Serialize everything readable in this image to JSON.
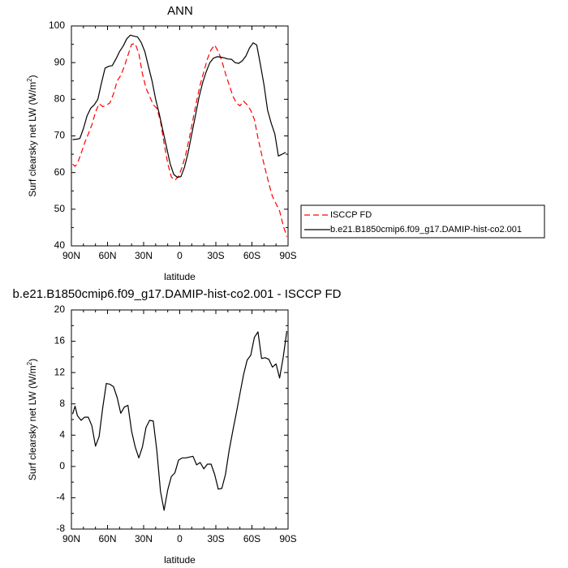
{
  "colors": {
    "obs": "#ff0000",
    "model": "#000000"
  },
  "chart_data": [
    {
      "type": "line",
      "title": "ANN",
      "xlabel": "latitude",
      "ylabel_main": "Surf clearsky net LW (W/m",
      "ylabel_sup": "2",
      "ylabel_close": ")",
      "xlim": [
        -90,
        90
      ],
      "ylim": [
        40,
        100
      ],
      "xticks": [
        -90,
        -60,
        -30,
        0,
        30,
        60,
        90
      ],
      "xtick_labels": [
        "90N",
        "60N",
        "30N",
        "0",
        "30S",
        "60S",
        "90S"
      ],
      "yticks": [
        40,
        50,
        60,
        70,
        80,
        90,
        100
      ],
      "ytick_labels": [
        "40",
        "50",
        "60",
        "70",
        "80",
        "90",
        "100"
      ],
      "legend": {
        "placement": "right"
      },
      "series": [
        {
          "name": "ISCCP FD",
          "style": "dashed",
          "color": "#ff0000",
          "x": [
            -89,
            -87,
            -85,
            -82,
            -79,
            -76,
            -73,
            -70,
            -67,
            -64,
            -61,
            -58,
            -55,
            -52,
            -49,
            -46,
            -43,
            -40,
            -37,
            -34,
            -31,
            -28,
            -25,
            -22,
            -19,
            -16,
            -13,
            -10,
            -7,
            -4,
            -1,
            2,
            5,
            8,
            11,
            14,
            17,
            20,
            23,
            26,
            29,
            32,
            35,
            38,
            41,
            44,
            47,
            50,
            53,
            56,
            59,
            62,
            65,
            68,
            71,
            74,
            77,
            80,
            83,
            86,
            89
          ],
          "y": [
            62.3,
            61.7,
            62.5,
            65.2,
            68.1,
            70.5,
            73.0,
            76.5,
            78.8,
            78.0,
            78.4,
            79.0,
            81.5,
            85.0,
            86.5,
            89.0,
            92.0,
            95.0,
            95.2,
            92.5,
            87.0,
            83.0,
            80.8,
            78.5,
            77.5,
            74.0,
            68.0,
            62.5,
            58.8,
            57.9,
            59.0,
            61.5,
            65.0,
            69.5,
            74.5,
            79.5,
            84.0,
            87.5,
            91.0,
            93.5,
            94.8,
            93.0,
            90.5,
            87.0,
            84.0,
            81.0,
            79.0,
            78.2,
            79.5,
            78.5,
            77.0,
            74.5,
            69.5,
            65.0,
            61.0,
            57.0,
            53.5,
            51.5,
            49.5,
            45.5,
            42.5
          ]
        },
        {
          "name": "b.e21.B1850cmip6.f09_g17.DAMIP-hist-co2.001",
          "style": "solid",
          "color": "#000000",
          "x": [
            -89,
            -86,
            -83,
            -80,
            -77,
            -74,
            -71,
            -68,
            -65,
            -62,
            -59,
            -56,
            -53,
            -50,
            -47,
            -44,
            -41,
            -38,
            -35,
            -32,
            -29,
            -26,
            -23,
            -20,
            -17,
            -14,
            -11,
            -8,
            -5,
            -2,
            1,
            4,
            7,
            10,
            13,
            16,
            19,
            22,
            25,
            28,
            31,
            34,
            37,
            40,
            43,
            46,
            49,
            52,
            55,
            58,
            61,
            64,
            67,
            70,
            73,
            76,
            79,
            82,
            85,
            88
          ],
          "y": [
            69.0,
            69.1,
            69.3,
            72.0,
            75.5,
            77.5,
            78.5,
            80.0,
            84.5,
            88.5,
            89.0,
            89.2,
            91.0,
            93.0,
            94.5,
            96.5,
            97.5,
            97.2,
            97.0,
            95.5,
            93.0,
            89.0,
            85.0,
            80.0,
            76.0,
            71.5,
            67.0,
            62.5,
            59.5,
            58.7,
            58.9,
            61.5,
            65.5,
            70.5,
            75.5,
            80.5,
            84.5,
            87.5,
            90.0,
            91.2,
            91.6,
            91.5,
            91.3,
            91.0,
            90.9,
            90.0,
            89.8,
            90.5,
            91.8,
            94.0,
            95.4,
            94.8,
            89.5,
            84.0,
            77.0,
            73.5,
            70.5,
            64.5,
            65.0,
            65.5
          ]
        }
      ]
    },
    {
      "type": "line",
      "title": "b.e21.B1850cmip6.f09_g17.DAMIP-hist-co2.001 - ISCCP FD",
      "xlabel": "latitude",
      "ylabel_main": "Surf clearsky net LW (W/m",
      "ylabel_sup": "2",
      "ylabel_close": ")",
      "xlim": [
        -90,
        90
      ],
      "ylim": [
        -8,
        20
      ],
      "xticks": [
        -90,
        -60,
        -30,
        0,
        30,
        60,
        90
      ],
      "xtick_labels": [
        "90N",
        "60N",
        "30N",
        "0",
        "30S",
        "60S",
        "90S"
      ],
      "yticks": [
        -8,
        -4,
        0,
        4,
        8,
        12,
        16,
        20
      ],
      "ytick_labels": [
        "-8",
        "-4",
        "0",
        "4",
        "8",
        "12",
        "16",
        "20"
      ],
      "series": [
        {
          "color": "#000000",
          "style": "solid",
          "x": [
            -89,
            -87,
            -85,
            -82,
            -79,
            -76,
            -73,
            -70,
            -67,
            -64,
            -61,
            -58,
            -55,
            -52,
            -49,
            -46,
            -43,
            -40,
            -37,
            -34,
            -31,
            -28,
            -25,
            -22,
            -19,
            -16,
            -13,
            -10,
            -7,
            -4,
            -1,
            2,
            5,
            8,
            11,
            14,
            17,
            20,
            23,
            26,
            29,
            32,
            35,
            38,
            41,
            44,
            47,
            50,
            53,
            56,
            59,
            62,
            65,
            68,
            71,
            74,
            77,
            80,
            83,
            86,
            89
          ],
          "y": [
            6.7,
            7.7,
            6.5,
            5.9,
            6.3,
            6.3,
            5.2,
            2.6,
            3.8,
            7.5,
            10.6,
            10.5,
            10.2,
            8.8,
            6.8,
            7.6,
            7.8,
            4.5,
            2.5,
            1.1,
            2.5,
            5.0,
            5.9,
            5.8,
            2.0,
            -3.2,
            -5.6,
            -3.0,
            -1.3,
            -0.8,
            0.8,
            1.1,
            1.1,
            1.2,
            1.3,
            0.2,
            0.5,
            -0.3,
            0.3,
            0.3,
            -1.0,
            -2.9,
            -2.8,
            -1.0,
            2.0,
            4.5,
            6.8,
            9.3,
            11.7,
            13.6,
            14.2,
            16.5,
            17.2,
            13.8,
            13.9,
            13.7,
            12.7,
            13.1,
            11.3,
            14.0,
            17.3
          ]
        }
      ]
    }
  ]
}
